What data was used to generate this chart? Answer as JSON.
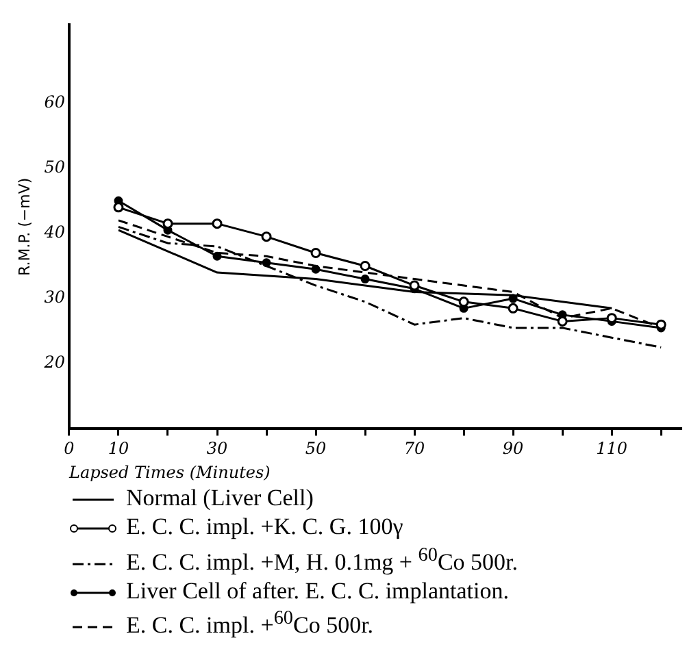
{
  "chart_data": {
    "type": "line",
    "xlabel": "Lapsed Times (Minutes)",
    "ylabel": "R.M.P. (−mV)",
    "xlim": [
      0,
      124
    ],
    "ylim": [
      10,
      72
    ],
    "xticks": [
      0,
      10,
      {
        "value": 20,
        "label": null
      },
      30,
      {
        "value": 40,
        "label": null
      },
      50,
      {
        "value": 60,
        "label": null
      },
      70,
      {
        "value": 80,
        "label": null
      },
      90,
      {
        "value": 100,
        "label": null
      },
      110,
      {
        "value": 120,
        "label": null
      }
    ],
    "yticks": [
      20,
      30,
      40,
      50,
      60
    ],
    "grid": false,
    "legend": "bottom",
    "series": [
      {
        "name": "Normal (Liver Cell)",
        "color": "#000000",
        "line_style": "solid",
        "marker": "none",
        "x": [
          10,
          30,
          50,
          70,
          90,
          110
        ],
        "values": [
          40.5,
          34,
          33,
          31,
          30.5,
          28.5
        ]
      },
      {
        "name": "E. C. C. impl.  +K. C. G. 100γ",
        "color": "#000000",
        "line_style": "solid",
        "marker": "circle",
        "x": [
          10,
          20,
          30,
          40,
          50,
          60,
          70,
          80,
          90,
          100,
          110,
          120
        ],
        "values": [
          44,
          41.5,
          41.5,
          39.5,
          37,
          35,
          32,
          29.5,
          28.5,
          26.5,
          27,
          26
        ]
      },
      {
        "name": "E. C. C. impl.  +M, H. 0.1mg + $^{60}$Co 500r.",
        "color": "#000000",
        "line_style": "dashdot",
        "marker": "none",
        "x": [
          10,
          20,
          30,
          40,
          50,
          60,
          70,
          80,
          90,
          100,
          110,
          120
        ],
        "values": [
          41,
          38.5,
          38,
          35,
          32,
          29.5,
          26,
          27,
          25.5,
          25.5,
          24,
          22.5
        ]
      },
      {
        "name": "Liver Cell of after.  E. C. C. implantation.",
        "color": "#000000",
        "line_style": "solid",
        "marker": "dot",
        "x": [
          10,
          20,
          30,
          40,
          50,
          60,
          70,
          80,
          90,
          100,
          110,
          120
        ],
        "values": [
          45,
          40.5,
          36.5,
          35.5,
          34.5,
          33,
          31.5,
          28.5,
          30,
          27.5,
          26.5,
          25.5
        ]
      },
      {
        "name": "E. C. C. impl.  +$^{60}$Co 500r.",
        "color": "#000000",
        "line_style": "dashed",
        "marker": "none",
        "x": [
          10,
          20,
          30,
          40,
          50,
          60,
          70,
          80,
          90,
          100,
          110,
          120
        ],
        "values": [
          42,
          39.5,
          37,
          36.5,
          35,
          34,
          33,
          32,
          31,
          27,
          28.5,
          25.5
        ]
      }
    ]
  }
}
